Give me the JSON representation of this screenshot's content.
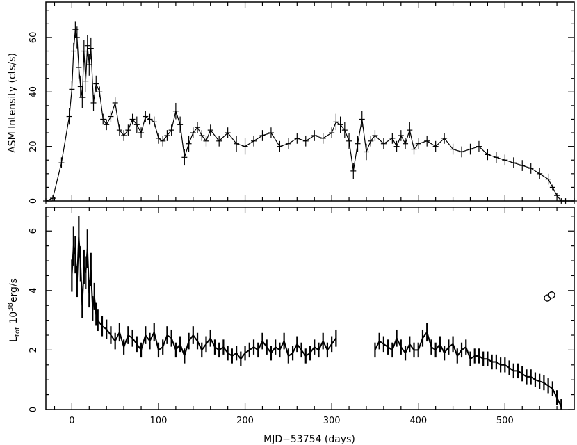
{
  "chart_data": [
    {
      "type": "line",
      "panel": "top",
      "xlabel": "",
      "ylabel": "ASM Intensity (cts/s)",
      "xlim": [
        -30,
        580
      ],
      "ylim": [
        0,
        73
      ],
      "xticks": [
        0,
        100,
        200,
        300,
        400,
        500
      ],
      "yticks": [
        0,
        20,
        40,
        60
      ],
      "grid": false,
      "series": [
        {
          "x": [
            -30,
            -22,
            -12,
            -3,
            0,
            2,
            4,
            6,
            8,
            10,
            12,
            14,
            16,
            18,
            20,
            22,
            25,
            28,
            32,
            36,
            40,
            45,
            50,
            55,
            60,
            65,
            70,
            75,
            80,
            85,
            90,
            95,
            100,
            105,
            110,
            115,
            120,
            125,
            130,
            135,
            140,
            145,
            150,
            155,
            160,
            170,
            180,
            190,
            200,
            210,
            220,
            230,
            240,
            250,
            260,
            270,
            280,
            290,
            300,
            305,
            310,
            315,
            320,
            325,
            330,
            335,
            340,
            345,
            350,
            360,
            370,
            375,
            380,
            385,
            390,
            395,
            400,
            410,
            420,
            430,
            440,
            450,
            460,
            470,
            480,
            490,
            500,
            510,
            520,
            530,
            540,
            550,
            555,
            560,
            565,
            570,
            580
          ],
          "y": [
            0,
            1,
            14,
            31,
            41,
            55,
            63,
            60,
            49,
            42,
            38,
            55,
            44,
            57,
            50,
            56,
            36,
            43,
            40,
            30,
            28,
            31,
            36,
            26,
            24,
            26,
            30,
            28,
            25,
            31,
            30,
            29,
            23,
            22,
            24,
            26,
            33,
            28,
            16,
            21,
            25,
            27,
            24,
            22,
            26,
            22,
            25,
            21,
            20,
            22,
            24,
            25,
            20,
            21,
            23,
            22,
            24,
            23,
            25,
            29,
            28,
            26,
            22,
            11,
            21,
            30,
            18,
            22,
            24,
            21,
            23,
            20,
            24,
            21,
            26,
            19,
            21,
            22,
            20,
            23,
            19,
            18,
            19,
            20,
            17,
            16,
            15,
            14,
            13,
            12,
            10,
            8,
            5,
            2,
            0,
            0,
            0
          ],
          "yerr": [
            1,
            1,
            2,
            3,
            3,
            3,
            3,
            4,
            4,
            4,
            4,
            4,
            4,
            4,
            4,
            4,
            3,
            3,
            2,
            2,
            2,
            2,
            2,
            2,
            2,
            2,
            2,
            3,
            2,
            2,
            2,
            2,
            2,
            2,
            2,
            2,
            3,
            3,
            3,
            3,
            2,
            2,
            2,
            2,
            2,
            2,
            2,
            3,
            3,
            2,
            2,
            2,
            2,
            2,
            2,
            2,
            2,
            2,
            2,
            3,
            3,
            3,
            3,
            3,
            3,
            3,
            3,
            2,
            2,
            2,
            2,
            2,
            2,
            2,
            3,
            2,
            2,
            2,
            2,
            2,
            2,
            2,
            2,
            2,
            2,
            2,
            2,
            2,
            2,
            2,
            2,
            2,
            1,
            1,
            1,
            1,
            1
          ]
        }
      ]
    },
    {
      "type": "line",
      "panel": "bottom",
      "xlabel": "MJD−53754 (days)",
      "ylabel_main": "L",
      "ylabel_sub": "tot",
      "ylabel_rest": " 10",
      "ylabel_sup": "38",
      "ylabel_unit": "erg/s",
      "xlim": [
        -30,
        580
      ],
      "ylim": [
        0,
        6.8
      ],
      "xticks": [
        0,
        100,
        200,
        300,
        400,
        500
      ],
      "yticks": [
        0,
        2,
        4,
        6
      ],
      "grid": false,
      "series": [
        {
          "x": [
            0,
            2,
            4,
            6,
            8,
            10,
            12,
            14,
            16,
            18,
            20,
            22,
            24,
            26,
            28,
            30,
            35,
            40,
            45,
            50,
            55,
            60,
            65,
            70,
            75,
            80,
            85,
            90,
            95,
            100,
            105,
            110,
            115,
            120,
            125,
            130,
            135,
            140,
            145,
            150,
            155,
            160,
            165,
            170,
            175,
            180,
            185,
            190,
            195,
            200,
            205,
            210,
            215,
            220,
            225,
            230,
            235,
            240,
            245,
            250,
            255,
            260,
            265,
            270,
            275,
            280,
            285,
            290,
            295,
            300,
            305,
            350,
            355,
            360,
            365,
            370,
            375,
            380,
            385,
            390,
            395,
            400,
            405,
            410,
            415,
            420,
            425,
            430,
            435,
            440,
            445,
            450,
            455,
            460,
            465,
            470,
            475,
            480,
            485,
            490,
            495,
            500,
            505,
            510,
            515,
            520,
            525,
            530,
            535,
            540,
            545,
            550,
            555,
            560,
            565
          ],
          "y": [
            4.5,
            5.5,
            5.2,
            4.3,
            5.8,
            4.9,
            3.5,
            4.8,
            4.6,
            5.4,
            3.9,
            4.7,
            3.4,
            3.8,
            3.2,
            3.0,
            2.8,
            2.7,
            2.5,
            2.3,
            2.6,
            2.1,
            2.5,
            2.4,
            2.2,
            2.0,
            2.5,
            2.3,
            2.6,
            2.0,
            2.1,
            2.5,
            2.4,
            2.0,
            2.2,
            1.8,
            2.3,
            2.5,
            2.3,
            2.0,
            2.2,
            2.4,
            2.1,
            2.0,
            2.1,
            1.9,
            1.8,
            1.9,
            1.7,
            1.9,
            2.0,
            2.1,
            2.0,
            2.3,
            2.1,
            1.9,
            2.1,
            2.0,
            2.3,
            1.8,
            1.9,
            2.2,
            2.0,
            1.8,
            1.9,
            2.1,
            2.0,
            2.3,
            2.0,
            2.2,
            2.4,
            2.0,
            2.3,
            2.2,
            2.1,
            2.0,
            2.4,
            2.1,
            1.9,
            2.2,
            2.0,
            2.0,
            2.4,
            2.6,
            2.1,
            2.0,
            2.2,
            1.9,
            2.1,
            2.2,
            1.8,
            2.0,
            2.1,
            1.7,
            1.8,
            1.8,
            1.7,
            1.7,
            1.6,
            1.6,
            1.5,
            1.5,
            1.4,
            1.3,
            1.3,
            1.2,
            1.1,
            1.1,
            1.0,
            0.95,
            0.9,
            0.8,
            0.7,
            0.4,
            0.1
          ]
        },
        {
          "x": [
            549,
            554
          ],
          "y": [
            3.75,
            3.85
          ]
        }
      ]
    }
  ]
}
